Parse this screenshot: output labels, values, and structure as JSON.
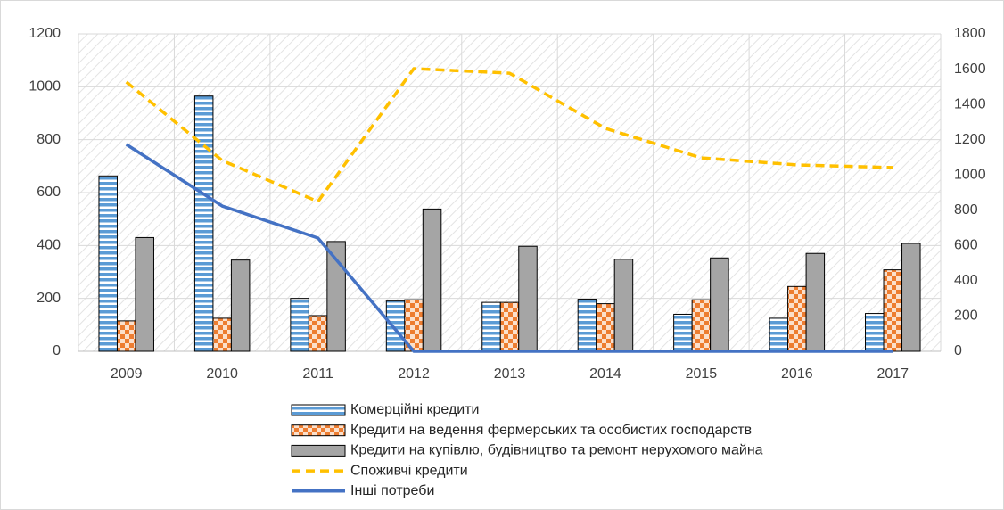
{
  "chart_data": {
    "type": "bar",
    "categories": [
      "2009",
      "2010",
      "2011",
      "2012",
      "2013",
      "2014",
      "2015",
      "2016",
      "2017"
    ],
    "series": [
      {
        "name": "Комерційні кредити",
        "color": "#5b9bd5",
        "values": [
          663,
          965,
          200,
          190,
          185,
          197,
          140,
          125,
          143
        ]
      },
      {
        "name": "Кредити на ведення фермерських та особистих господарств",
        "color": "#ed7d31",
        "values": [
          115,
          125,
          135,
          195,
          185,
          180,
          195,
          245,
          308
        ]
      },
      {
        "name": "Кредити на купівлю, будівництво та ремонт нерухомого майна",
        "color": "#a5a5a5",
        "values": [
          430,
          345,
          415,
          538,
          397,
          348,
          353,
          370,
          408
        ]
      },
      {
        "name": "Споживчі кредити",
        "color": "#ffc000",
        "type": "line",
        "dash": true,
        "axis": "y2",
        "values": [
          1527,
          1082,
          849,
          1603,
          1577,
          1264,
          1097,
          1057,
          1042
        ]
      },
      {
        "name": "Інші потреби",
        "color": "#4472c4",
        "type": "line",
        "axis": "y2",
        "values": [
          1173,
          824,
          642,
          0,
          0,
          0,
          0,
          0,
          0
        ]
      }
    ],
    "ylim": [
      0,
      1200
    ],
    "yticks": [
      0,
      200,
      400,
      600,
      800,
      1000,
      1200
    ],
    "y2lim": [
      0,
      1800
    ],
    "y2ticks": [
      0,
      200,
      400,
      600,
      800,
      1000,
      1200,
      1400,
      1600,
      1800
    ],
    "grid": true
  }
}
